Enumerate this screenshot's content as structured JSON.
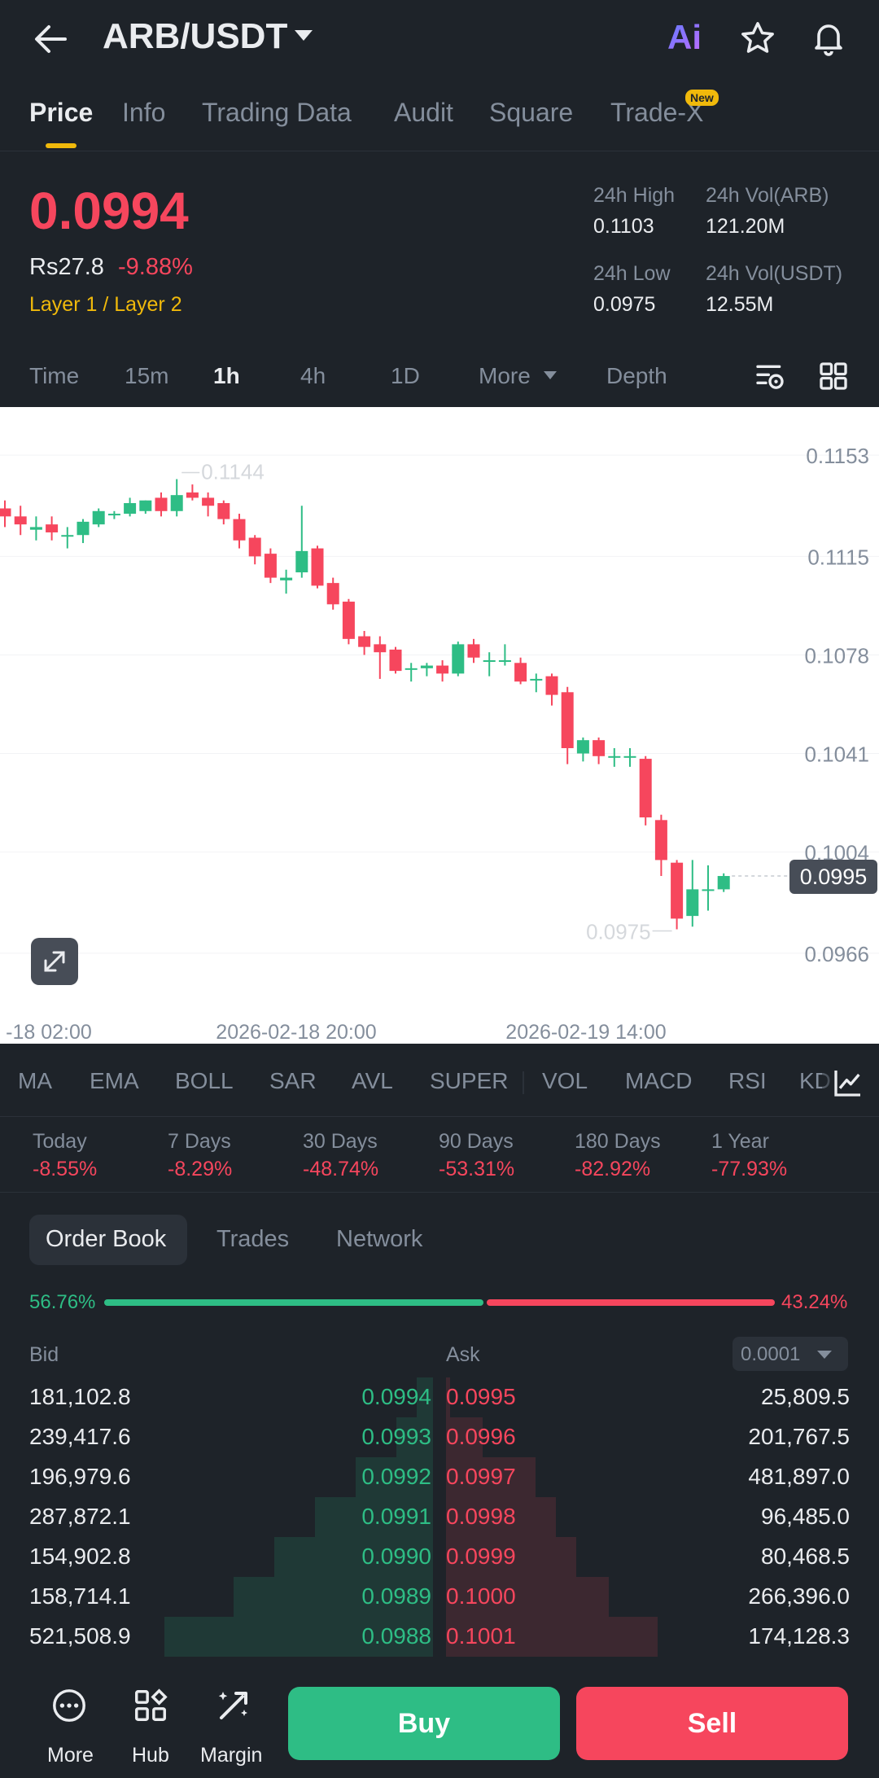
{
  "header": {
    "pair": "ARB/USDT",
    "ai_label": "Ai"
  },
  "tabs": {
    "price": "Price",
    "info": "Info",
    "trading_data": "Trading Data",
    "audit": "Audit",
    "square": "Square",
    "tradex": "Trade-X",
    "new_badge": "New"
  },
  "summary": {
    "last_price": "0.0994",
    "fiat_price": "Rs27.8",
    "change_pct": "-9.88%",
    "sector": "Layer 1 / Layer 2",
    "high_label": "24h High",
    "high_value": "0.1103",
    "vol_base_label": "24h Vol(ARB)",
    "vol_base_value": "121.20M",
    "low_label": "24h Low",
    "low_value": "0.0975",
    "vol_quote_label": "24h Vol(USDT)",
    "vol_quote_value": "12.55M"
  },
  "intervals": {
    "time": "Time",
    "m15": "15m",
    "h1": "1h",
    "h4": "4h",
    "d1": "1D",
    "more": "More",
    "depth": "Depth"
  },
  "colors": {
    "up": "#2ebd85",
    "down": "#f6465d",
    "accent": "#f0b90b",
    "bg": "#1e2329"
  },
  "chart_data": {
    "type": "candlestick",
    "y_ticks": [
      "0.1153",
      "0.1115",
      "0.1078",
      "0.1041",
      "0.1004",
      "0.0966"
    ],
    "x_ticks": [
      "-18 02:00",
      "2026-02-18 20:00",
      "2026-02-19 14:00"
    ],
    "ylim": [
      0.0951,
      0.1168
    ],
    "max_label": "0.1144",
    "min_label": "0.0975",
    "current_label": "0.0995",
    "candles": [
      {
        "o": 0.1133,
        "h": 0.1136,
        "l": 0.1126,
        "c": 0.113
      },
      {
        "o": 0.113,
        "h": 0.1134,
        "l": 0.1123,
        "c": 0.1127
      },
      {
        "o": 0.1125,
        "h": 0.113,
        "l": 0.1121,
        "c": 0.1126
      },
      {
        "o": 0.1127,
        "h": 0.113,
        "l": 0.1121,
        "c": 0.1124
      },
      {
        "o": 0.1123,
        "h": 0.1126,
        "l": 0.1118,
        "c": 0.1123
      },
      {
        "o": 0.1123,
        "h": 0.1129,
        "l": 0.112,
        "c": 0.1128
      },
      {
        "o": 0.1127,
        "h": 0.1133,
        "l": 0.1126,
        "c": 0.1132
      },
      {
        "o": 0.1131,
        "h": 0.1132,
        "l": 0.1129,
        "c": 0.1131
      },
      {
        "o": 0.1131,
        "h": 0.1137,
        "l": 0.113,
        "c": 0.1135
      },
      {
        "o": 0.1132,
        "h": 0.1136,
        "l": 0.1131,
        "c": 0.1136
      },
      {
        "o": 0.1137,
        "h": 0.1139,
        "l": 0.113,
        "c": 0.1132
      },
      {
        "o": 0.1132,
        "h": 0.1144,
        "l": 0.113,
        "c": 0.1138
      },
      {
        "o": 0.1139,
        "h": 0.1142,
        "l": 0.1136,
        "c": 0.1137
      },
      {
        "o": 0.1137,
        "h": 0.1139,
        "l": 0.113,
        "c": 0.1134
      },
      {
        "o": 0.1135,
        "h": 0.1136,
        "l": 0.1127,
        "c": 0.1129
      },
      {
        "o": 0.1129,
        "h": 0.1131,
        "l": 0.1118,
        "c": 0.1121
      },
      {
        "o": 0.1122,
        "h": 0.1123,
        "l": 0.1112,
        "c": 0.1115
      },
      {
        "o": 0.1116,
        "h": 0.1118,
        "l": 0.1105,
        "c": 0.1107
      },
      {
        "o": 0.1106,
        "h": 0.111,
        "l": 0.1101,
        "c": 0.1107
      },
      {
        "o": 0.1109,
        "h": 0.1134,
        "l": 0.1107,
        "c": 0.1117
      },
      {
        "o": 0.1118,
        "h": 0.1119,
        "l": 0.1103,
        "c": 0.1104
      },
      {
        "o": 0.1105,
        "h": 0.1107,
        "l": 0.1095,
        "c": 0.1097
      },
      {
        "o": 0.1098,
        "h": 0.1099,
        "l": 0.1082,
        "c": 0.1084
      },
      {
        "o": 0.1085,
        "h": 0.1087,
        "l": 0.1078,
        "c": 0.1081
      },
      {
        "o": 0.1082,
        "h": 0.1085,
        "l": 0.1069,
        "c": 0.1079
      },
      {
        "o": 0.108,
        "h": 0.1081,
        "l": 0.1071,
        "c": 0.1072
      },
      {
        "o": 0.1073,
        "h": 0.1075,
        "l": 0.1068,
        "c": 0.1073
      },
      {
        "o": 0.1073,
        "h": 0.1075,
        "l": 0.107,
        "c": 0.1074
      },
      {
        "o": 0.1074,
        "h": 0.1076,
        "l": 0.1068,
        "c": 0.1071
      },
      {
        "o": 0.1071,
        "h": 0.1083,
        "l": 0.107,
        "c": 0.1082
      },
      {
        "o": 0.1082,
        "h": 0.1084,
        "l": 0.1075,
        "c": 0.1077
      },
      {
        "o": 0.1076,
        "h": 0.1079,
        "l": 0.107,
        "c": 0.1076
      },
      {
        "o": 0.1076,
        "h": 0.1082,
        "l": 0.1074,
        "c": 0.1076
      },
      {
        "o": 0.1075,
        "h": 0.1077,
        "l": 0.1067,
        "c": 0.1068
      },
      {
        "o": 0.1069,
        "h": 0.1071,
        "l": 0.1064,
        "c": 0.1069
      },
      {
        "o": 0.107,
        "h": 0.1071,
        "l": 0.1059,
        "c": 0.1063
      },
      {
        "o": 0.1064,
        "h": 0.1066,
        "l": 0.1037,
        "c": 0.1043
      },
      {
        "o": 0.1041,
        "h": 0.1047,
        "l": 0.1038,
        "c": 0.1046
      },
      {
        "o": 0.1046,
        "h": 0.1047,
        "l": 0.1037,
        "c": 0.104
      },
      {
        "o": 0.104,
        "h": 0.1043,
        "l": 0.1036,
        "c": 0.104
      },
      {
        "o": 0.104,
        "h": 0.1043,
        "l": 0.1036,
        "c": 0.104
      },
      {
        "o": 0.1039,
        "h": 0.104,
        "l": 0.1014,
        "c": 0.1017
      },
      {
        "o": 0.1016,
        "h": 0.1018,
        "l": 0.0995,
        "c": 0.1001
      },
      {
        "o": 0.1,
        "h": 0.1001,
        "l": 0.0975,
        "c": 0.0979
      },
      {
        "o": 0.098,
        "h": 0.1001,
        "l": 0.0976,
        "c": 0.099
      },
      {
        "o": 0.099,
        "h": 0.0999,
        "l": 0.0982,
        "c": 0.099
      },
      {
        "o": 0.099,
        "h": 0.0996,
        "l": 0.0989,
        "c": 0.0995
      }
    ]
  },
  "indicators": [
    "MA",
    "EMA",
    "BOLL",
    "SAR",
    "AVL",
    "SUPER",
    "VOL",
    "MACD",
    "RSI",
    "KD"
  ],
  "performance": [
    {
      "label": "Today",
      "value": "-8.55%"
    },
    {
      "label": "7 Days",
      "value": "-8.29%"
    },
    {
      "label": "30 Days",
      "value": "-48.74%"
    },
    {
      "label": "90 Days",
      "value": "-53.31%"
    },
    {
      "label": "180 Days",
      "value": "-82.92%"
    },
    {
      "label": "1 Year",
      "value": "-77.93%"
    }
  ],
  "orderbook": {
    "tabs": {
      "book": "Order Book",
      "trades": "Trades",
      "network": "Network"
    },
    "bid_ratio": "56.76%",
    "ask_ratio": "43.24%",
    "bid_header": "Bid",
    "ask_header": "Ask",
    "precision": "0.0001",
    "bid_depth_fraction": 0.56,
    "ask_depth_fraction": 0.44,
    "rows": [
      {
        "bid_qty": "181,102.8",
        "bid_price": "0.0994",
        "ask_price": "0.0995",
        "ask_qty": "25,809.5",
        "bid_cum": 0.04,
        "ask_cum": 0.01
      },
      {
        "bid_qty": "239,417.6",
        "bid_price": "0.0993",
        "ask_price": "0.0996",
        "ask_qty": "201,767.5",
        "bid_cum": 0.09,
        "ask_cum": 0.09
      },
      {
        "bid_qty": "196,979.6",
        "bid_price": "0.0992",
        "ask_price": "0.0997",
        "ask_qty": "481,897.0",
        "bid_cum": 0.19,
        "ask_cum": 0.22
      },
      {
        "bid_qty": "287,872.1",
        "bid_price": "0.0991",
        "ask_price": "0.0998",
        "ask_qty": "96,485.0",
        "bid_cum": 0.29,
        "ask_cum": 0.27
      },
      {
        "bid_qty": "154,902.8",
        "bid_price": "0.0990",
        "ask_price": "0.0999",
        "ask_qty": "80,468.5",
        "bid_cum": 0.39,
        "ask_cum": 0.32
      },
      {
        "bid_qty": "158,714.1",
        "bid_price": "0.0989",
        "ask_price": "0.1000",
        "ask_qty": "266,396.0",
        "bid_cum": 0.49,
        "ask_cum": 0.4
      },
      {
        "bid_qty": "521,508.9",
        "bid_price": "0.0988",
        "ask_price": "0.1001",
        "ask_qty": "174,128.3",
        "bid_cum": 0.66,
        "ask_cum": 0.52
      }
    ]
  },
  "bottom": {
    "more": "More",
    "hub": "Hub",
    "margin": "Margin",
    "buy": "Buy",
    "sell": "Sell"
  }
}
